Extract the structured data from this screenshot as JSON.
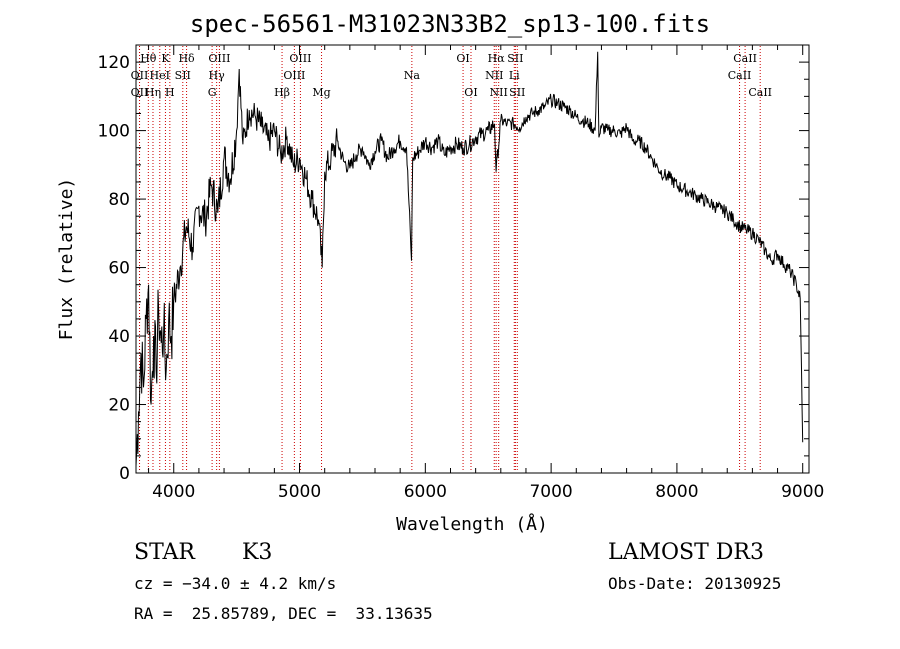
{
  "chart_data": {
    "type": "line",
    "title": "spec-56561-M31023N33B2_sp13-100.fits",
    "xlabel": "Wavelength (Å)",
    "ylabel": "Flux (relative)",
    "xlim": [
      3700,
      9050
    ],
    "ylim": [
      0,
      125
    ],
    "xticks": [
      4000,
      5000,
      6000,
      7000,
      8000,
      9000
    ],
    "yticks": [
      0,
      20,
      40,
      60,
      80,
      100,
      120
    ],
    "line_color": "#000000",
    "marker_color": "#cc0000",
    "spectrum": {
      "x": [
        3700,
        3720,
        3740,
        3760,
        3780,
        3800,
        3820,
        3840,
        3860,
        3880,
        3900,
        3920,
        3940,
        3960,
        3980,
        4000,
        4050,
        4100,
        4150,
        4200,
        4250,
        4300,
        4350,
        4400,
        4450,
        4500,
        4520,
        4550,
        4600,
        4650,
        4700,
        4750,
        4800,
        4850,
        4900,
        4950,
        5000,
        5050,
        5100,
        5150,
        5180,
        5200,
        5250,
        5300,
        5350,
        5400,
        5450,
        5500,
        5550,
        5600,
        5650,
        5700,
        5750,
        5800,
        5850,
        5890,
        5900,
        5950,
        6000,
        6050,
        6100,
        6150,
        6200,
        6250,
        6300,
        6350,
        6400,
        6450,
        6500,
        6550,
        6563,
        6600,
        6650,
        6700,
        6750,
        6800,
        6850,
        6900,
        6950,
        7000,
        7050,
        7100,
        7150,
        7200,
        7250,
        7300,
        7350,
        7370,
        7380,
        7400,
        7450,
        7500,
        7550,
        7600,
        7650,
        7700,
        7750,
        7800,
        7850,
        7900,
        7950,
        8000,
        8050,
        8100,
        8150,
        8200,
        8250,
        8300,
        8350,
        8400,
        8450,
        8500,
        8550,
        8600,
        8650,
        8700,
        8750,
        8800,
        8850,
        8900,
        8950,
        8980,
        9000
      ],
      "y": [
        2,
        18,
        35,
        25,
        45,
        55,
        20,
        40,
        30,
        48,
        38,
        42,
        30,
        45,
        40,
        50,
        60,
        72,
        66,
        78,
        74,
        84,
        76,
        92,
        86,
        100,
        118,
        96,
        106,
        104,
        101,
        97,
        100,
        93,
        98,
        90,
        92,
        86,
        80,
        74,
        60,
        88,
        92,
        97,
        91,
        89,
        93,
        95,
        90,
        94,
        97,
        92,
        95,
        97,
        95,
        62,
        92,
        94,
        97,
        95,
        97,
        93,
        95,
        96,
        95,
        96,
        98,
        99,
        100,
        102,
        88,
        103,
        102,
        102,
        101,
        104,
        105,
        106,
        107,
        109,
        108,
        107,
        106,
        104,
        103,
        102,
        100,
        123,
        98,
        101,
        100,
        100,
        99,
        101,
        97,
        97,
        95,
        92,
        89,
        87,
        86,
        84,
        83,
        82,
        81,
        80,
        79,
        78,
        77,
        76,
        74,
        72,
        71,
        70,
        68,
        65,
        62,
        64,
        61,
        59,
        55,
        51,
        9
      ]
    },
    "line_markers": [
      {
        "wl": 3798,
        "label": "Hθ",
        "row": 0
      },
      {
        "wl": 3728,
        "label": "OII",
        "row": 1
      },
      {
        "wl": 3728,
        "label": "OII",
        "row": 2
      },
      {
        "wl": 3835,
        "label": "Hη",
        "row": 2
      },
      {
        "wl": 3889,
        "label": "HeI",
        "row": 1
      },
      {
        "wl": 3934,
        "label": "K",
        "row": 0
      },
      {
        "wl": 3969,
        "label": "H",
        "row": 2
      },
      {
        "wl": 4072,
        "label": "SII",
        "row": 1
      },
      {
        "wl": 4102,
        "label": "Hδ",
        "row": 0
      },
      {
        "wl": 4305,
        "label": "G",
        "row": 2
      },
      {
        "wl": 4341,
        "label": "Hγ",
        "row": 1
      },
      {
        "wl": 4363,
        "label": "OIII",
        "row": 0
      },
      {
        "wl": 4861,
        "label": "Hβ",
        "row": 2
      },
      {
        "wl": 4959,
        "label": "OIII",
        "row": 1
      },
      {
        "wl": 5007,
        "label": "OIII",
        "row": 0
      },
      {
        "wl": 5175,
        "label": "Mg",
        "row": 2
      },
      {
        "wl": 5893,
        "label": "Na",
        "row": 1
      },
      {
        "wl": 6300,
        "label": "OI",
        "row": 0
      },
      {
        "wl": 6363,
        "label": "OI",
        "row": 2
      },
      {
        "wl": 6548,
        "label": "NII",
        "row": 1
      },
      {
        "wl": 6563,
        "label": "Hα",
        "row": 0
      },
      {
        "wl": 6583,
        "label": "NII",
        "row": 2
      },
      {
        "wl": 6707,
        "label": "Li",
        "row": 1
      },
      {
        "wl": 6716,
        "label": "SII",
        "row": 0
      },
      {
        "wl": 6731,
        "label": "SII",
        "row": 2
      },
      {
        "wl": 8498,
        "label": "CaII",
        "row": 1
      },
      {
        "wl": 8542,
        "label": "CaII",
        "row": 0
      },
      {
        "wl": 8662,
        "label": "CaII",
        "row": 2
      }
    ]
  },
  "info": {
    "object_class": "STAR",
    "subclass": "K3",
    "survey": "LAMOST DR3",
    "velocity": "cz = −34.0 ± 4.2 km/s",
    "obs_date": "Obs-Date: 20130925",
    "coords": "RA =  25.85789, DEC =  33.13635"
  }
}
